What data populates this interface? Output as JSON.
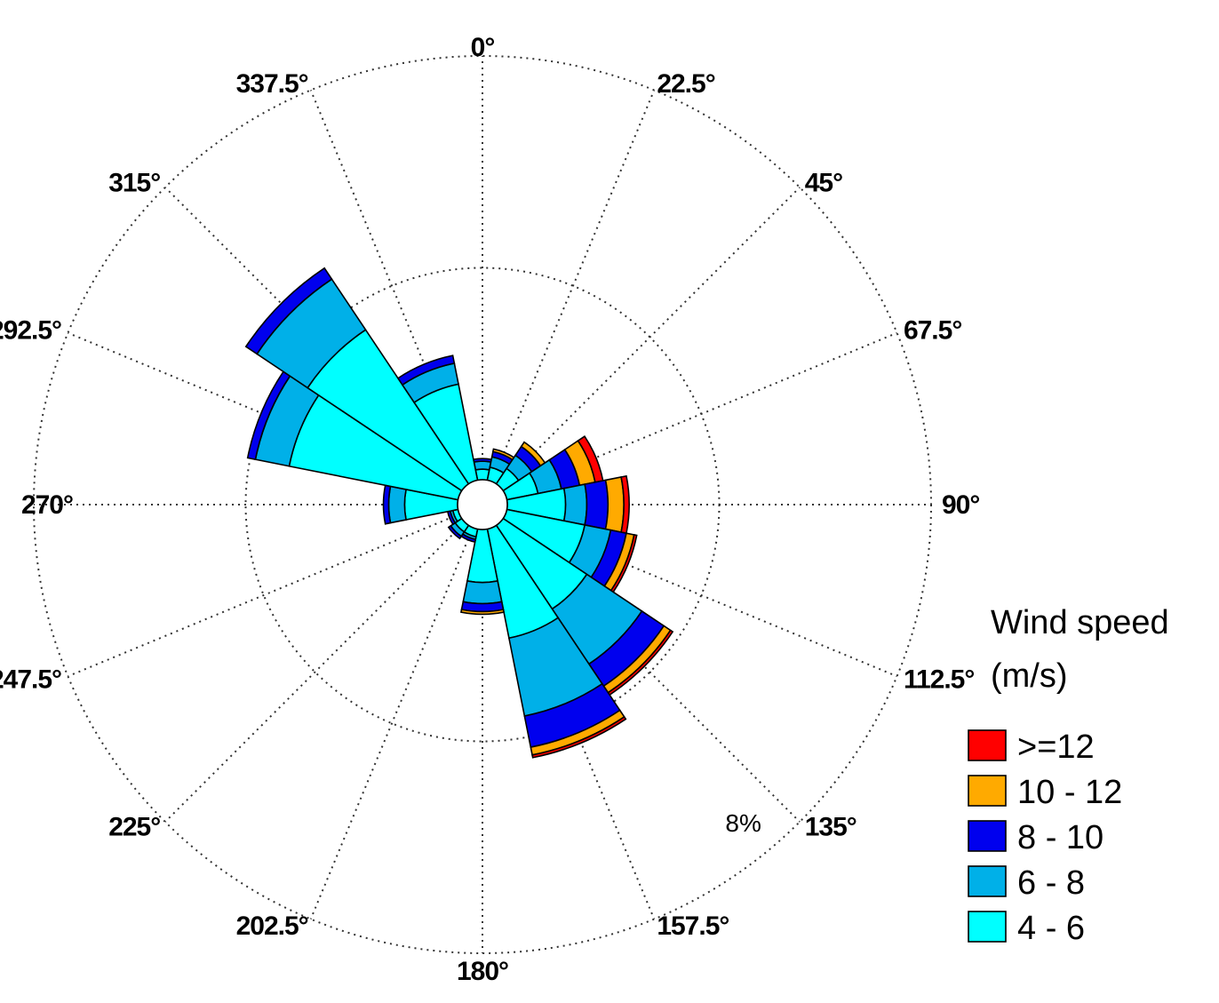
{
  "chart_data": {
    "type": "windrose",
    "bins": [
      "4 - 6",
      "6 - 8",
      "8 - 10",
      "10 - 12",
      ">=12"
    ],
    "colors": [
      "#00FFFF",
      "#00B0E8",
      "#0000EE",
      "#FFAA00",
      "#FF0000"
    ],
    "directions": [
      0,
      22.5,
      45,
      67.5,
      90,
      112.5,
      135,
      157.5,
      180,
      202.5,
      225,
      247.5,
      270,
      292.5,
      315,
      337.5
    ],
    "direction_labels": [
      "0°",
      "22.5°",
      "45°",
      "67.5°",
      "90°",
      "112.5°",
      "135°",
      "157.5°",
      "180°",
      "202.5°",
      "225°",
      "247.5°",
      "270°",
      "292.5°",
      "315°",
      "337.5°"
    ],
    "ring_label": "8%",
    "ring_value": 8,
    "r_max": 16,
    "ring_count": 2,
    "sectors": [
      {
        "direction": 0,
        "values": [
          0.4,
          0.3,
          0.1,
          0.0,
          0.0
        ]
      },
      {
        "direction": 22.5,
        "values": [
          0.5,
          0.4,
          0.2,
          0.1,
          0.0
        ]
      },
      {
        "direction": 45,
        "values": [
          0.7,
          0.6,
          0.4,
          0.2,
          0.0
        ]
      },
      {
        "direction": 67.5,
        "values": [
          1.2,
          0.9,
          0.7,
          0.6,
          0.3
        ]
      },
      {
        "direction": 90,
        "values": [
          2.2,
          0.8,
          0.8,
          0.6,
          0.2
        ]
      },
      {
        "direction": 112.5,
        "values": [
          3.0,
          1.0,
          0.6,
          0.3,
          0.1
        ]
      },
      {
        "direction": 135,
        "values": [
          3.8,
          2.5,
          1.0,
          0.3,
          0.1
        ]
      },
      {
        "direction": 157.5,
        "values": [
          4.2,
          3.0,
          1.2,
          0.3,
          0.1
        ]
      },
      {
        "direction": 180,
        "values": [
          2.0,
          0.8,
          0.3,
          0.1,
          0.0
        ]
      },
      {
        "direction": 202.5,
        "values": [
          0.3,
          0.1,
          0.1,
          0.0,
          0.0
        ]
      },
      {
        "direction": 225,
        "values": [
          0.3,
          0.2,
          0.1,
          0.0,
          0.0
        ]
      },
      {
        "direction": 247.5,
        "values": [
          0.2,
          0.1,
          0.1,
          0.0,
          0.0
        ]
      },
      {
        "direction": 270,
        "values": [
          2.0,
          0.6,
          0.2,
          0.0,
          0.0
        ]
      },
      {
        "direction": 292.5,
        "values": [
          6.5,
          1.3,
          0.3,
          0.0,
          0.0
        ]
      },
      {
        "direction": 315,
        "values": [
          7.0,
          2.3,
          0.5,
          0.0,
          0.0
        ]
      },
      {
        "direction": 337.5,
        "values": [
          3.7,
          0.8,
          0.3,
          0.0,
          0.0
        ]
      }
    ],
    "legend": {
      "title_line1": "Wind speed",
      "title_line2": "(m/s)",
      "placement": "right",
      "entries": [
        ">=12",
        "10 - 12",
        "8 - 10",
        "6 - 8",
        "4 - 6"
      ],
      "entry_colors": [
        "#FF0000",
        "#FFAA00",
        "#0000EE",
        "#00B0E8",
        "#00FFFF"
      ]
    }
  }
}
